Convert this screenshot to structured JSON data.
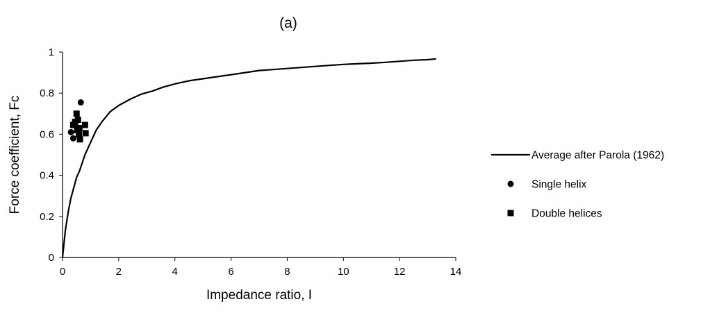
{
  "chart_data": {
    "type": "scatter",
    "title": "(a)",
    "xlabel": "Impedance ratio, I",
    "ylabel": "Force coefficient, Fc",
    "xlim": [
      0,
      14
    ],
    "ylim": [
      0,
      1
    ],
    "x_ticks": [
      0,
      2,
      4,
      6,
      8,
      10,
      12,
      14
    ],
    "y_ticks": [
      0,
      0.2,
      0.4,
      0.6,
      0.8,
      1
    ],
    "x_tick_labels": [
      "0",
      "2",
      "4",
      "6",
      "8",
      "10",
      "12",
      "14"
    ],
    "y_tick_labels": [
      "0",
      "0.2",
      "0.4",
      "0.6",
      "0.8",
      "1"
    ],
    "grid": false,
    "legend_position": "right",
    "series": [
      {
        "name": "Average after Parola (1962)",
        "kind": "line",
        "color": "#000000",
        "x": [
          0,
          0.1,
          0.2,
          0.3,
          0.4,
          0.5,
          0.6,
          0.7,
          0.8,
          1.0,
          1.2,
          1.4,
          1.7,
          2.0,
          2.4,
          2.8,
          3.2,
          3.6,
          4.0,
          4.5,
          5.0,
          5.5,
          6.0,
          6.5,
          7.0,
          7.5,
          8.0,
          8.5,
          9.0,
          9.5,
          10.0,
          10.5,
          11.0,
          11.5,
          12.0,
          12.5,
          13.0,
          13.3
        ],
        "y": [
          0,
          0.13,
          0.22,
          0.29,
          0.34,
          0.39,
          0.42,
          0.46,
          0.5,
          0.56,
          0.62,
          0.66,
          0.71,
          0.74,
          0.77,
          0.795,
          0.81,
          0.83,
          0.845,
          0.86,
          0.87,
          0.88,
          0.89,
          0.9,
          0.91,
          0.915,
          0.92,
          0.925,
          0.93,
          0.935,
          0.94,
          0.943,
          0.946,
          0.95,
          0.955,
          0.96,
          0.963,
          0.967
        ]
      },
      {
        "name": "Single helix",
        "kind": "scatter",
        "marker": "circle",
        "color": "#000000",
        "x": [
          0.3,
          0.38,
          0.65
        ],
        "y": [
          0.61,
          0.58,
          0.755
        ]
      },
      {
        "name": "Double helices",
        "kind": "scatter",
        "marker": "square",
        "color": "#000000",
        "x": [
          0.38,
          0.45,
          0.5,
          0.52,
          0.55,
          0.58,
          0.6,
          0.62,
          0.8,
          0.82
        ],
        "y": [
          0.645,
          0.66,
          0.7,
          0.62,
          0.67,
          0.6,
          0.63,
          0.575,
          0.645,
          0.605
        ]
      }
    ]
  }
}
